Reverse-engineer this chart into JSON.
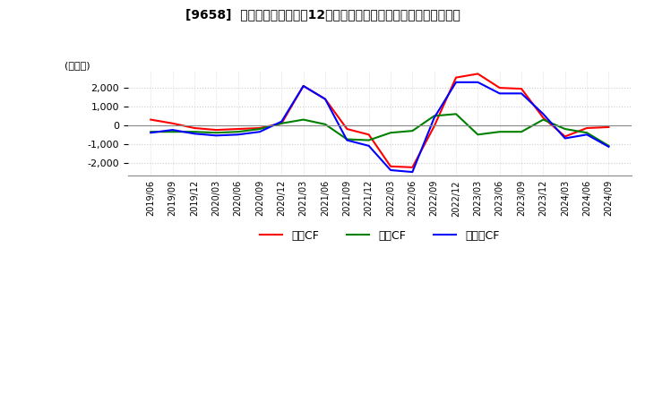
{
  "title": "[9658]  キャッシュフローの12か月移動合計の対前年同期増減額の推移",
  "ylabel": "(百万円)",
  "ylim": [
    -2700,
    2900
  ],
  "yticks": [
    -2000,
    -1000,
    0,
    1000,
    2000
  ],
  "legend_labels": [
    "営業CF",
    "投資CF",
    "フリーCF"
  ],
  "line_colors": [
    "#ff0000",
    "#008000",
    "#0000ff"
  ],
  "dates": [
    "2019/06",
    "2019/09",
    "2019/12",
    "2020/03",
    "2020/06",
    "2020/09",
    "2020/12",
    "2021/03",
    "2021/06",
    "2021/09",
    "2021/12",
    "2022/03",
    "2022/06",
    "2022/09",
    "2022/12",
    "2023/03",
    "2023/06",
    "2023/09",
    "2023/12",
    "2024/03",
    "2024/06",
    "2024/09"
  ],
  "営業CF": [
    300,
    100,
    -150,
    -250,
    -200,
    -150,
    100,
    2100,
    1400,
    -200,
    -500,
    -2200,
    -2250,
    -50,
    2550,
    2750,
    2000,
    1950,
    400,
    -600,
    -150,
    -100
  ],
  "投資CF": [
    -350,
    -350,
    -350,
    -400,
    -350,
    -200,
    100,
    300,
    50,
    -750,
    -800,
    -400,
    -300,
    500,
    600,
    -500,
    -350,
    -350,
    300,
    -200,
    -400,
    -1100
  ],
  "フリーCF": [
    -400,
    -250,
    -450,
    -550,
    -500,
    -350,
    200,
    2100,
    1400,
    -800,
    -1100,
    -2400,
    -2500,
    400,
    2300,
    2300,
    1700,
    1700,
    600,
    -700,
    -500,
    -1150
  ],
  "background_color": "#ffffff",
  "grid_color": "#cccccc",
  "zero_line_color": "#888888"
}
